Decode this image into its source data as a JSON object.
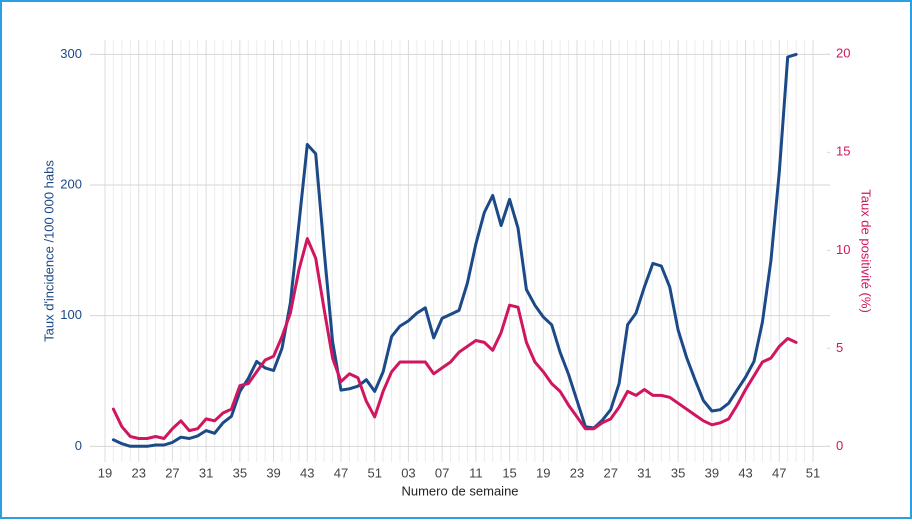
{
  "chart_data": {
    "type": "line",
    "x_label": "Numero de semaine",
    "y_label": "Taux d'incidence /100 000 habs",
    "y2_label": "Taux de positivité (%)",
    "categories": [
      "19",
      null,
      null,
      null,
      "23",
      null,
      null,
      null,
      "27",
      null,
      null,
      null,
      "31",
      null,
      null,
      null,
      "35",
      null,
      null,
      null,
      "39",
      null,
      null,
      null,
      "43",
      null,
      null,
      null,
      "47",
      null,
      null,
      null,
      "51",
      null,
      null,
      null,
      "03",
      null,
      null,
      null,
      "07",
      null,
      null,
      null,
      "11",
      null,
      null,
      null,
      "15",
      null,
      null,
      null,
      "19",
      null,
      null,
      null,
      "23",
      null,
      null,
      null,
      "27",
      null,
      null,
      null,
      "31",
      null,
      null,
      null,
      "35",
      null,
      null,
      null,
      "39",
      null,
      null,
      null,
      "43",
      null,
      null,
      null,
      "47",
      null,
      null,
      null,
      "51"
    ],
    "series": [
      {
        "name": "Taux d'incidence",
        "color": "#1c4a88",
        "axis": "y",
        "values": [
          null,
          5,
          2,
          0,
          0,
          0,
          1,
          1,
          3,
          7,
          6,
          8,
          12,
          10,
          18,
          23,
          42,
          52,
          65,
          60,
          58,
          75,
          110,
          170,
          231,
          224,
          150,
          80,
          43,
          44,
          46,
          51,
          42,
          57,
          84,
          92,
          96,
          102,
          106,
          83,
          98,
          101,
          104,
          125,
          155,
          179,
          192,
          169,
          189,
          167,
          120,
          108,
          99,
          93,
          72,
          55,
          35,
          15,
          14,
          20,
          28,
          48,
          93,
          102,
          122,
          140,
          138,
          122,
          89,
          68,
          51,
          35,
          27,
          28,
          33,
          43,
          53,
          65,
          95,
          142,
          210,
          298,
          300,
          null,
          null
        ]
      },
      {
        "name": "Taux de positivité",
        "color": "#d0165f",
        "axis": "y2",
        "values": [
          null,
          1.9,
          1.0,
          0.5,
          0.4,
          0.4,
          0.5,
          0.4,
          0.9,
          1.3,
          0.8,
          0.9,
          1.4,
          1.3,
          1.7,
          1.9,
          3.1,
          3.2,
          3.8,
          4.4,
          4.6,
          5.6,
          6.8,
          9.0,
          10.6,
          9.6,
          7.0,
          4.5,
          3.3,
          3.7,
          3.5,
          2.3,
          1.5,
          2.8,
          3.8,
          4.3,
          4.3,
          4.3,
          4.3,
          3.7,
          4.0,
          4.3,
          4.8,
          5.1,
          5.4,
          5.3,
          4.9,
          5.8,
          7.2,
          7.1,
          5.3,
          4.3,
          3.8,
          3.2,
          2.8,
          2.1,
          1.5,
          0.9,
          0.9,
          1.2,
          1.4,
          2.0,
          2.8,
          2.6,
          2.9,
          2.6,
          2.6,
          2.5,
          2.2,
          1.9,
          1.6,
          1.3,
          1.1,
          1.2,
          1.4,
          2.1,
          2.9,
          3.6,
          4.3,
          4.5,
          5.1,
          5.5,
          5.3,
          null,
          null
        ]
      }
    ],
    "ylim": [
      -12,
      311
    ],
    "yticks": [
      0,
      100,
      200,
      300
    ],
    "y2lim": [
      -0.8,
      20.73
    ],
    "y2ticks": [
      0,
      5,
      10,
      15,
      20
    ],
    "grid": true
  }
}
